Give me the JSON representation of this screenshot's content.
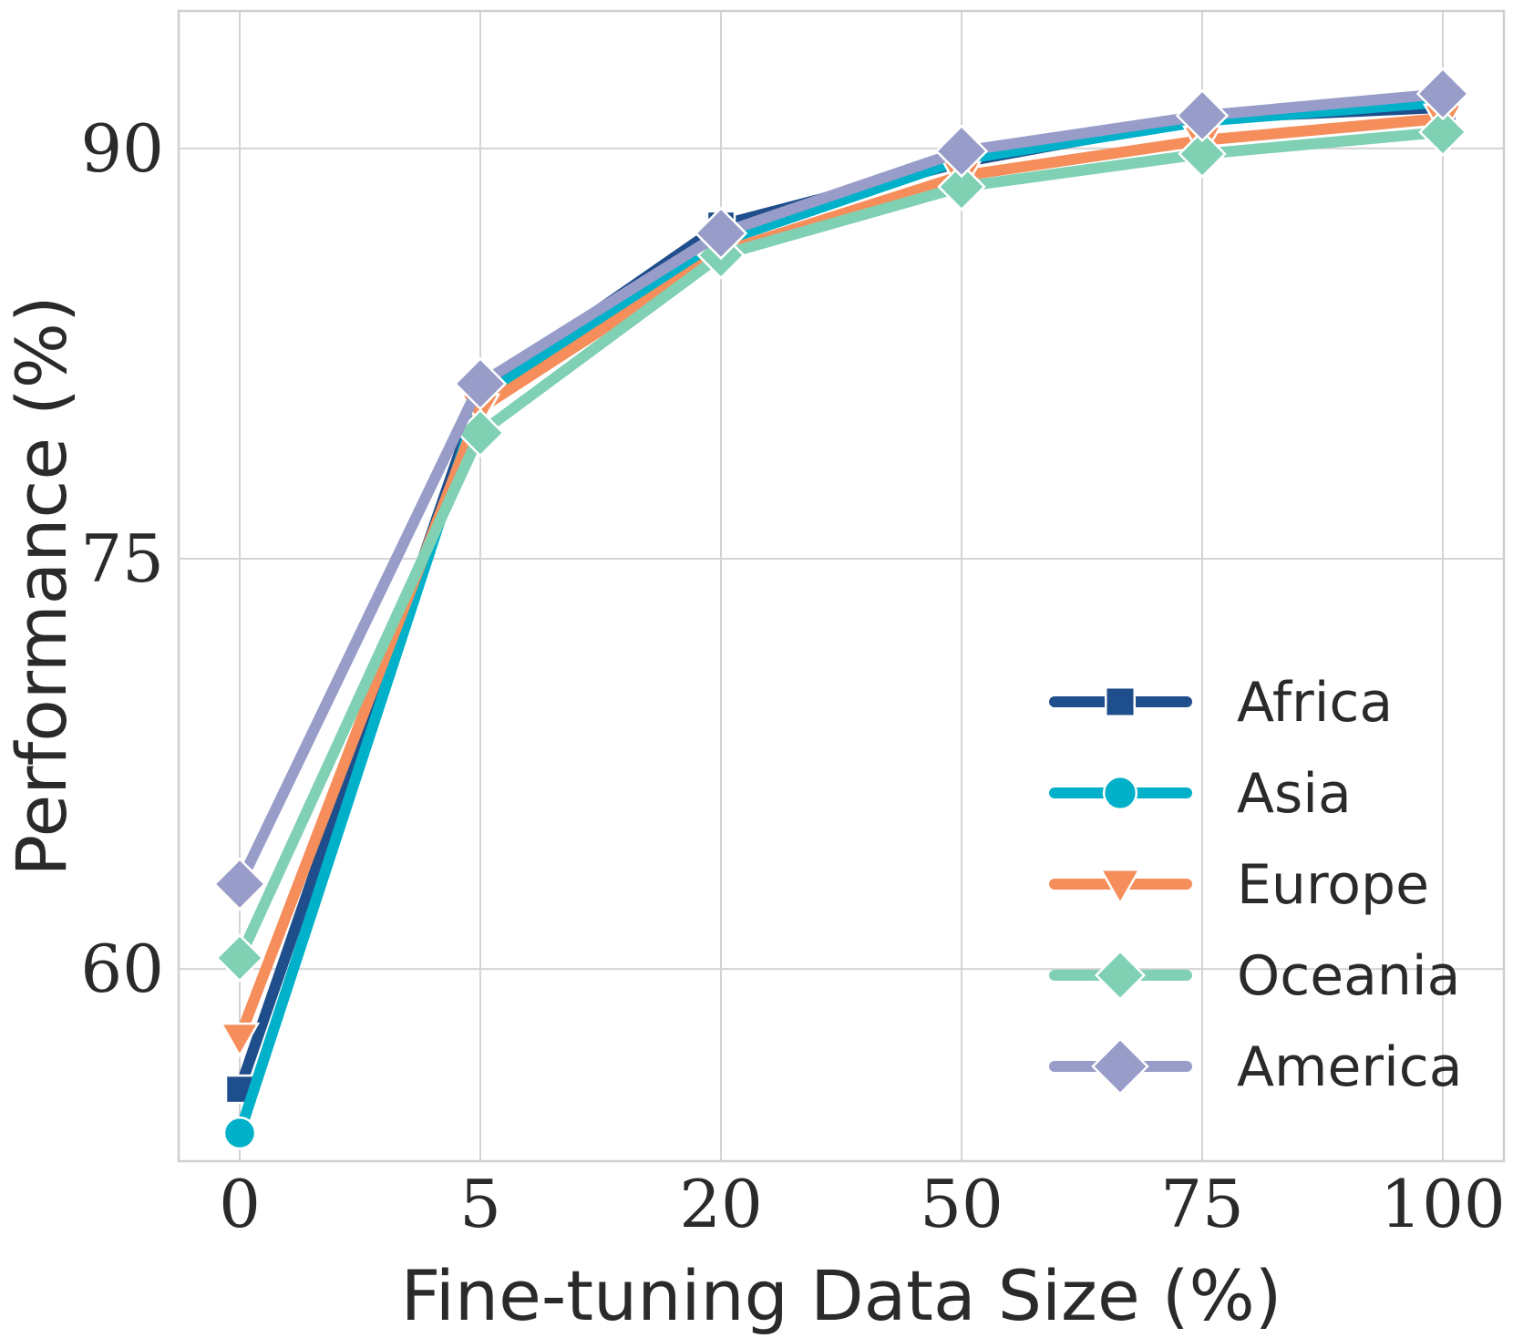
{
  "chart_data": {
    "type": "line",
    "title": "",
    "xlabel": "Fine-tuning Data Size (%)",
    "ylabel": "Performance (%)",
    "categories": [
      "0",
      "5",
      "20",
      "50",
      "75",
      "100"
    ],
    "yticks": [
      60,
      75,
      90
    ],
    "ylim": [
      52.97,
      95.03
    ],
    "grid": true,
    "legend_position": "bottom-right",
    "series": [
      {
        "name": "Africa",
        "color": "#1f4e8c",
        "marker": "square",
        "values": [
          55.6,
          81.1,
          87.2,
          89.5,
          91.1,
          91.5
        ]
      },
      {
        "name": "Asia",
        "color": "#00b1c9",
        "marker": "circle",
        "values": [
          54.0,
          80.9,
          86.6,
          89.6,
          91.0,
          91.7
        ]
      },
      {
        "name": "Europe",
        "color": "#f58e5a",
        "marker": "triangle-down",
        "values": [
          57.5,
          80.5,
          86.2,
          89.0,
          90.3,
          91.1
        ]
      },
      {
        "name": "Oceania",
        "color": "#80d0b4",
        "marker": "diamond",
        "values": [
          60.4,
          79.6,
          86.1,
          88.6,
          89.8,
          90.6
        ]
      },
      {
        "name": "America",
        "color": "#979cc9",
        "marker": "diamond",
        "values": [
          63.1,
          81.4,
          86.9,
          89.9,
          91.2,
          92.0
        ]
      }
    ]
  }
}
